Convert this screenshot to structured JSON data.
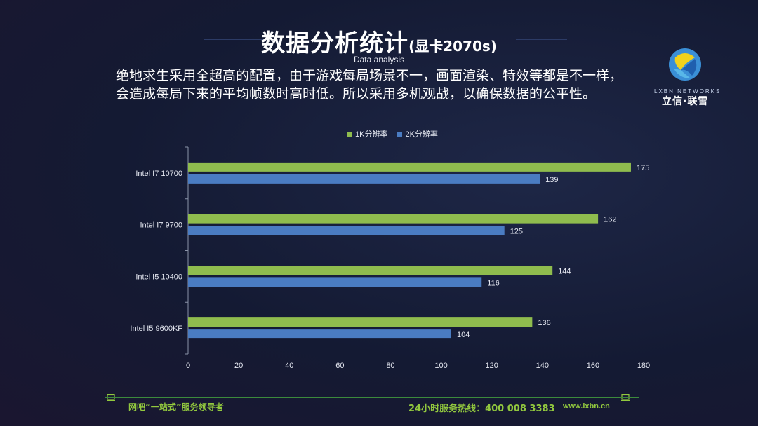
{
  "header": {
    "title": "数据分析统计",
    "title_suffix": "(显卡2070s)",
    "subtitle": "Data analysis",
    "description_line1": "绝地求生采用全超高的配置，由于游戏每局场景不一，画面渲染、特效等都是不一样，",
    "description_line2": "会造成每局下来的平均帧数时高时低。所以采用多机观战，以确保数据的公平性。"
  },
  "logo": {
    "en_text": "LXBN NETWORKS",
    "cn_text": "立信·联雪"
  },
  "colors": {
    "series1": "#8fbc4e",
    "series2": "#4a7cc2",
    "accent_green": "#92c83e"
  },
  "chart_data": {
    "type": "bar",
    "orientation": "horizontal",
    "categories": [
      "Intel I7 10700",
      "Intel I7 9700",
      "Intel I5 10400",
      "Intel I5 9600KF"
    ],
    "series": [
      {
        "name": "1K分辨率",
        "values": [
          175,
          162,
          144,
          136
        ]
      },
      {
        "name": "2K分辨率",
        "values": [
          139,
          125,
          116,
          104
        ]
      }
    ],
    "xlim": [
      0,
      180
    ],
    "xticks": [
      0,
      20,
      40,
      60,
      80,
      100,
      120,
      140,
      160,
      180
    ],
    "legend_position": "top",
    "grid": false
  },
  "footer": {
    "left_text": "网吧“一站式”服务领导者",
    "hotline": "24小时服务热线：400 008 3383",
    "url": "www.lxbn.cn"
  }
}
